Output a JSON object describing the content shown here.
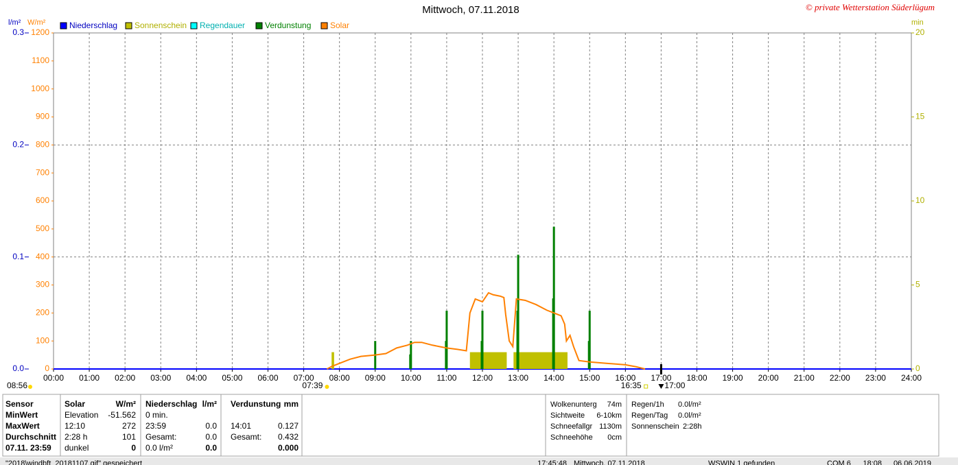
{
  "chart_data": {
    "type": "combo",
    "title": "Mittwoch, 07.11.2018",
    "copyright": "© private Wetterstation Süderlügum",
    "ylabel": "W/m²",
    "y3label": "l/m²",
    "y2label": "min",
    "xlim": [
      0,
      24
    ],
    "xticks": [
      {
        "value": 0,
        "label": "00:00"
      },
      {
        "value": 1,
        "label": "01:00"
      },
      {
        "value": 2,
        "label": "02:00"
      },
      {
        "value": 3,
        "label": "03:00"
      },
      {
        "value": 4,
        "label": "04:00"
      },
      {
        "value": 5,
        "label": "05:00"
      },
      {
        "value": 6,
        "label": "06:00"
      },
      {
        "value": 7,
        "label": "07:00"
      },
      {
        "value": 8,
        "label": "08:00"
      },
      {
        "value": 9,
        "label": "09:00"
      },
      {
        "value": 10,
        "label": "10:00"
      },
      {
        "value": 11,
        "label": "11:00"
      },
      {
        "value": 12,
        "label": "12:00"
      },
      {
        "value": 13,
        "label": "13:00"
      },
      {
        "value": 14,
        "label": "14:00"
      },
      {
        "value": 15,
        "label": "15:00"
      },
      {
        "value": 16,
        "label": "16:00"
      },
      {
        "value": 17,
        "label": "17:00"
      },
      {
        "value": 18,
        "label": "18:00"
      },
      {
        "value": 19,
        "label": "19:00"
      },
      {
        "value": 20,
        "label": "20:00"
      },
      {
        "value": 21,
        "label": "21:00"
      },
      {
        "value": 22,
        "label": "22:00"
      },
      {
        "value": 23,
        "label": "23:00"
      },
      {
        "value": 24,
        "label": "24:00"
      }
    ],
    "ylim": [
      0,
      1200
    ],
    "yticks": [
      0,
      100,
      200,
      300,
      400,
      500,
      600,
      700,
      800,
      900,
      1000,
      1100,
      1200
    ],
    "y3lim": [
      0,
      0.3
    ],
    "y3ticks": [
      {
        "value": 0,
        "label": "0.0"
      },
      0.1,
      0.2,
      0.3
    ],
    "y2lim": [
      0,
      20
    ],
    "y2ticks": [
      0,
      5,
      10,
      15,
      20
    ],
    "grid": true,
    "series": [
      {
        "name": "Niederschlag",
        "color": "#0000ff",
        "type": "line",
        "axis": "y3",
        "x": [
          0,
          24
        ],
        "values": [
          0,
          0
        ]
      },
      {
        "name": "Sonnenschein",
        "color": "#c0c000",
        "type": "span",
        "axis": "y2",
        "x_start": [
          7.78,
          11.65,
          12.87
        ],
        "x_end": [
          7.85,
          12.68,
          14.38
        ],
        "values": [
          1,
          1,
          1
        ]
      },
      {
        "name": "Regendauer",
        "color": "#00ffff",
        "type": "line",
        "axis": "y2",
        "x": [],
        "values": []
      },
      {
        "name": "Verdunstung",
        "color": "#008000",
        "type": "bar",
        "axis": "y3",
        "x": [
          9.0,
          9.98,
          10.0,
          10.98,
          11.0,
          11.98,
          12.0,
          12.98,
          13.0,
          13.98,
          14.0,
          14.98,
          15.0
        ],
        "values": [
          0.025,
          0.013,
          0.025,
          0.025,
          0.052,
          0.025,
          0.052,
          0.052,
          0.102,
          0.063,
          0.127,
          0.025,
          0.052
        ]
      },
      {
        "name": "Solar",
        "color": "#ff8000",
        "type": "line",
        "axis": "y",
        "x": [
          7.65,
          7.8,
          8.0,
          8.3,
          8.6,
          9.0,
          9.3,
          9.6,
          9.9,
          10.1,
          10.3,
          10.6,
          10.8,
          11.0,
          11.3,
          11.55,
          11.65,
          11.8,
          12.0,
          12.17,
          12.3,
          12.5,
          12.6,
          12.65,
          12.75,
          12.85,
          12.95,
          13.2,
          13.5,
          13.8,
          14.0,
          14.2,
          14.3,
          14.35,
          14.45,
          14.55,
          14.7,
          15.0,
          15.5,
          16.0,
          16.3,
          16.55
        ],
        "values": [
          0,
          10,
          20,
          35,
          45,
          50,
          55,
          75,
          85,
          95,
          95,
          85,
          80,
          75,
          70,
          65,
          200,
          250,
          240,
          272,
          265,
          260,
          255,
          195,
          100,
          80,
          250,
          245,
          230,
          210,
          200,
          190,
          160,
          100,
          120,
          80,
          30,
          25,
          20,
          15,
          8,
          0
        ]
      }
    ],
    "daylength": "08:56",
    "markers": [
      {
        "x": 7.65,
        "label": "07:39"
      },
      {
        "x": 16.583,
        "label": "16:35"
      },
      {
        "x": 17,
        "label": "17:00"
      }
    ]
  },
  "panel": {
    "labels": [
      "Sensor",
      "MinWert",
      "MaxWert",
      "Durchschnitt",
      "07.11. 23:59"
    ],
    "solar": {
      "header": [
        "Solar",
        "W/m²"
      ],
      "rows": [
        [
          "Elevation",
          "-51.562"
        ],
        [
          "12:10",
          "272"
        ],
        [
          "2:28 h",
          "101"
        ],
        [
          "dunkel",
          "0"
        ]
      ]
    },
    "niederschlag": {
      "header": [
        "Niederschlag",
        "l/m²"
      ],
      "rows": [
        [
          "0 min."
        ],
        [
          "23:59",
          "0.0"
        ],
        [
          "Gesamt:",
          "0.0"
        ],
        [
          "0.0 l/m²",
          "0.0"
        ]
      ]
    },
    "verdunstung": {
      "header": [
        "Verdunstung",
        "mm"
      ],
      "rows": [
        [
          "14:01",
          "0.127"
        ],
        [
          "Gesamt:",
          "0.432"
        ]
      ],
      "total": "0.000"
    },
    "weather": [
      [
        "Wolkenunterg",
        "74m"
      ],
      [
        "Sichtweite",
        "6-10km"
      ],
      [
        "Schneefallgr",
        "1130m"
      ],
      [
        "Schneehöhe",
        "0cm"
      ]
    ],
    "rain": [
      [
        "Regen/1h",
        "0.0l/m²"
      ],
      [
        "Regen/Tag",
        "0.0l/m²"
      ],
      [
        "Sonnenschein",
        "2:28h"
      ]
    ]
  },
  "status": [
    "\"2018\\windbft_20181107.gif\" gespeichert",
    "17:45:48",
    "Mittwoch, 07.11.2018",
    "WSWIN 1 gefunden",
    "COM 6",
    "18:08",
    "06.06.2019"
  ]
}
